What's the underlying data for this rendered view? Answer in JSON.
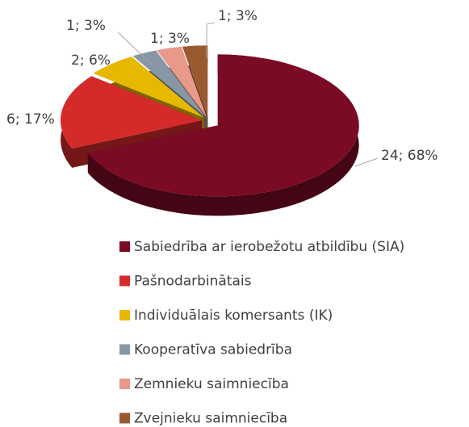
{
  "chart_data": {
    "type": "pie",
    "categories": [
      "Sabiedrība ar ierobežotu atbildību (SIA)",
      "Pašnodarbinātais",
      "Individuālais komersants (IK)",
      "Kooperatīva sabiedrība",
      "Zemnieku saimniecība",
      "Zvejnieku saimniecība"
    ],
    "values": [
      24,
      6,
      2,
      1,
      1,
      1
    ],
    "value_labels": [
      "24; 68%",
      "6; 17%",
      "2; 6%",
      "1; 3%",
      "1; 3%",
      "1; 3%"
    ],
    "colors": [
      "#7b0a25",
      "#d42a2a",
      "#e6b800",
      "#8797a5",
      "#e8998a",
      "#9a5a30"
    ],
    "legend": "bottom"
  }
}
